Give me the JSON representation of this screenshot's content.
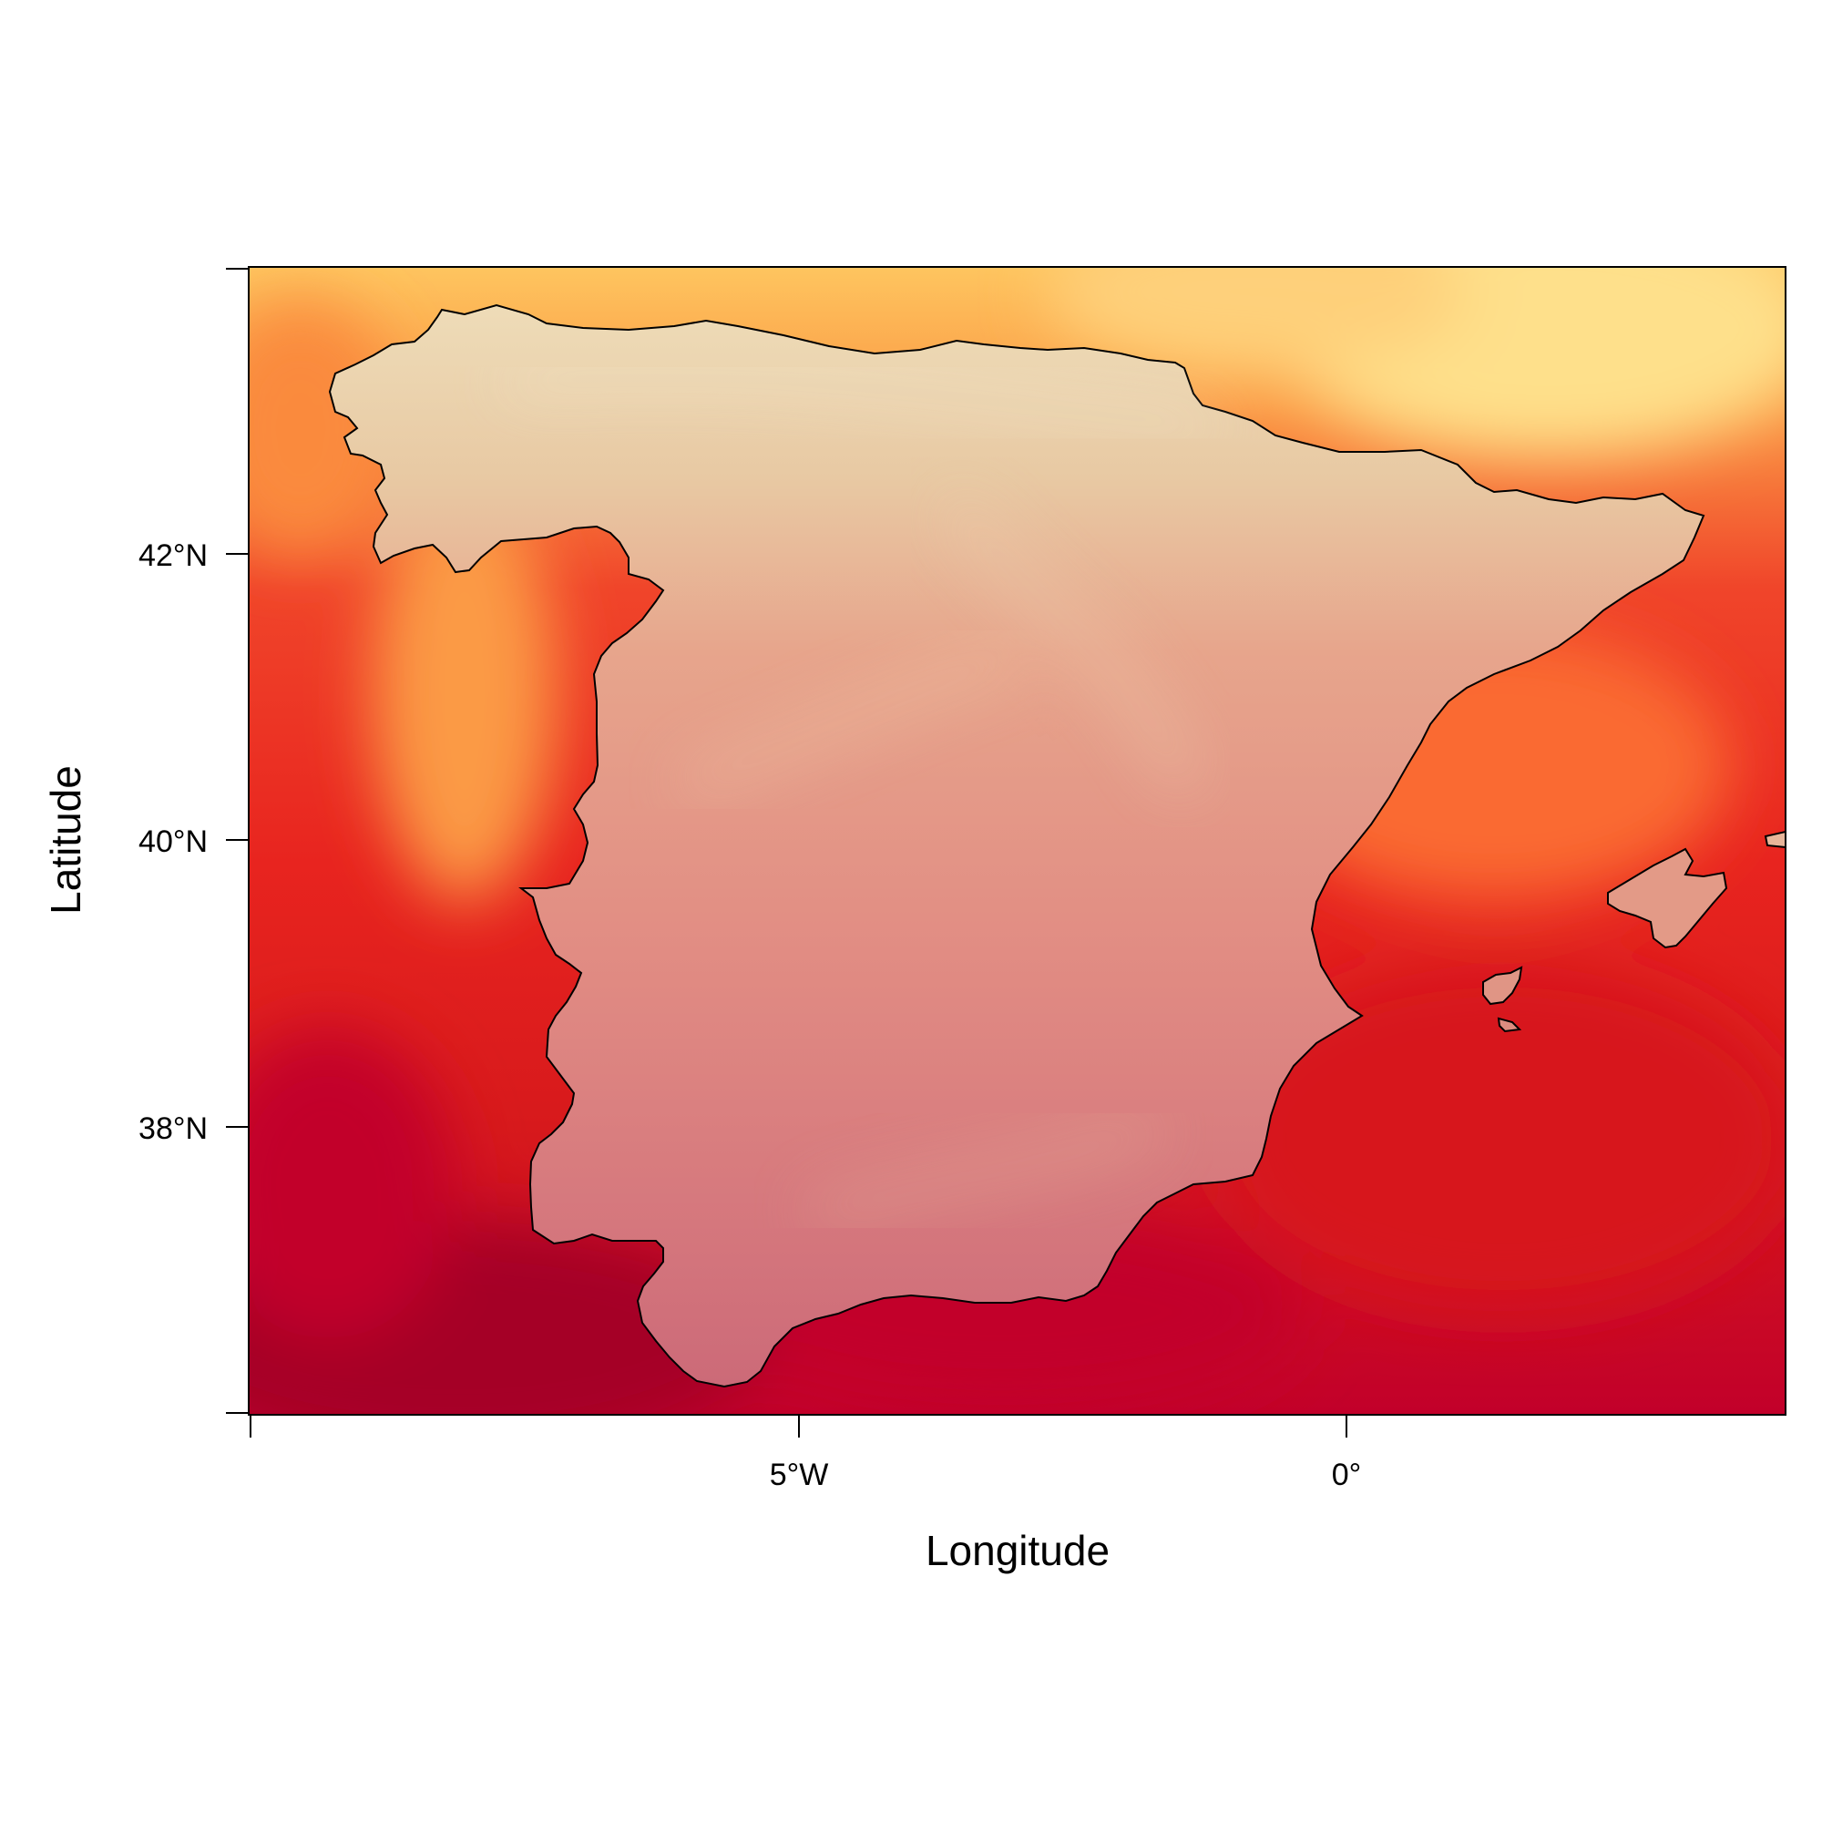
{
  "map": {
    "xlabel": "Longitude",
    "ylabel": "Latitude",
    "x_ticks": [
      "5°W",
      "0°"
    ],
    "y_ticks": [
      "42°N",
      "40°N",
      "38°N"
    ],
    "colors": {
      "deep_red": "#a50026",
      "red": "#c2002a",
      "crimson": "#d7191c",
      "red_orange": "#e8241f",
      "orange_red": "#f0452a",
      "orange": "#fa6a30",
      "light_orange": "#fb9a45",
      "yellow_orange": "#fec55f",
      "pale_yellow": "#fee08b",
      "land_north": "#e8d3ad",
      "land_center": "#e49985",
      "land_south": "#d0727a"
    }
  }
}
